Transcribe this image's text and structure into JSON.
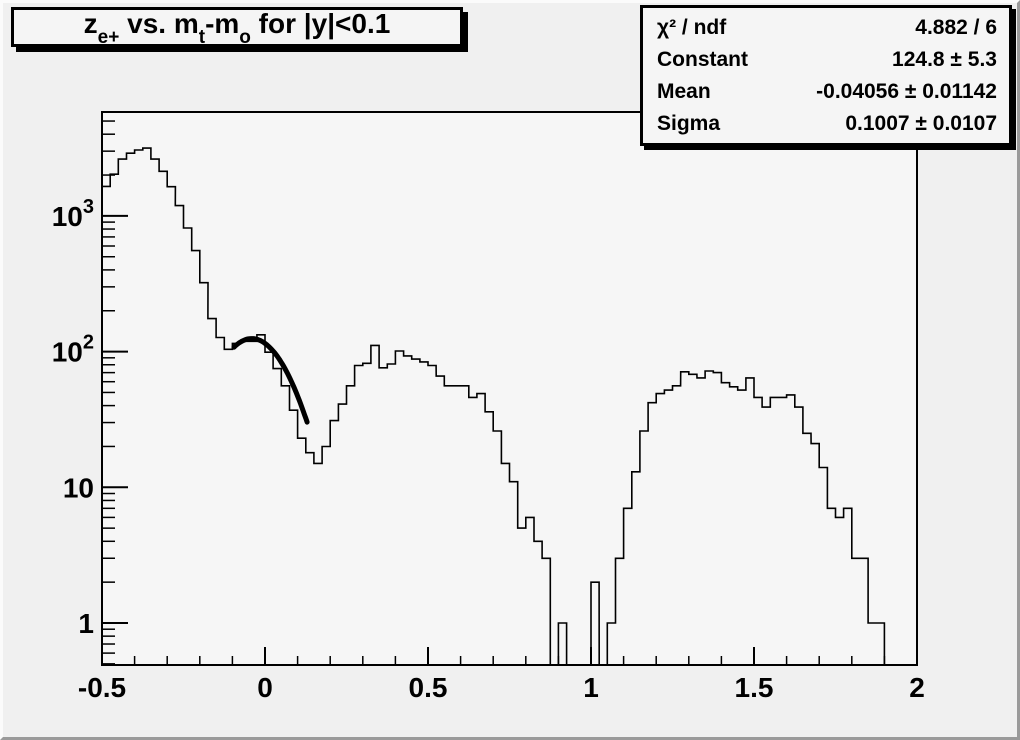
{
  "canvas": {
    "bg_color": "#f0f0f0",
    "frame_bg_color": "#f6f6f6",
    "line_color": "#000000",
    "bevel_light": "#fbfbfb",
    "bevel_dark": "#9a9a9a"
  },
  "title": {
    "text": "z_e+ vs. m_t-m_o for |y|<0.1",
    "segments": [
      {
        "t": "z"
      },
      {
        "t": "e+",
        "sub": true
      },
      {
        "t": " vs. m"
      },
      {
        "t": "t",
        "sub": true
      },
      {
        "t": "-m"
      },
      {
        "t": "o",
        "sub": true
      },
      {
        "t": " for |y|<0.1"
      }
    ]
  },
  "stats_box": {
    "rows": [
      {
        "label": "χ² / ndf",
        "value": "4.882 / 6"
      },
      {
        "label": "Constant",
        "value": "124.8 ± 5.3"
      },
      {
        "label": "Mean",
        "value": "-0.04056 ± 0.01142"
      },
      {
        "label": "Sigma",
        "value": "0.1007 ± 0.0107"
      }
    ]
  },
  "chart_data": {
    "type": "bar",
    "render_style": "step-histogram-outline",
    "title": "z_e+ vs. m_t-m_o for |y|<0.1",
    "xlabel": "",
    "ylabel": "",
    "grid": false,
    "legend": null,
    "y_scale": "log",
    "xlim": [
      -0.5,
      2.0
    ],
    "ylim": [
      0.49,
      5700
    ],
    "x_start": -0.5,
    "bin_width": 0.025,
    "n_bins": 100,
    "values": [
      1650,
      2030,
      2620,
      2900,
      3060,
      3160,
      2620,
      2130,
      1640,
      1190,
      815,
      555,
      322,
      175,
      127,
      104,
      115,
      119,
      119,
      133,
      99,
      75,
      56,
      37,
      23,
      18,
      15,
      20,
      31,
      41,
      56,
      79,
      82,
      111,
      76,
      81,
      101,
      93,
      88,
      84,
      79,
      66,
      56,
      56,
      56,
      46,
      49,
      36,
      26,
      15,
      11,
      5,
      6,
      4,
      3,
      0,
      1,
      0,
      0,
      0,
      2,
      0,
      1,
      3,
      7,
      13,
      26,
      42,
      49,
      52,
      56,
      71,
      68,
      64,
      72,
      70,
      59,
      55,
      52,
      64,
      46,
      39,
      46,
      46,
      48,
      39,
      25,
      21,
      14,
      7,
      6,
      7,
      3,
      3,
      1,
      1,
      0,
      0,
      0,
      0
    ],
    "x_ticks_major": {
      "values": [
        -0.5,
        0,
        0.5,
        1,
        1.5,
        2
      ],
      "labels": [
        "-0.5",
        "0",
        "0.5",
        "1",
        "1.5",
        "2"
      ]
    },
    "x_minor_step": 0.1,
    "y_ticks": [
      {
        "value": 1,
        "base": "1",
        "exp": ""
      },
      {
        "value": 10,
        "base": "10",
        "exp": ""
      },
      {
        "value": 100,
        "base": "10",
        "exp": "2"
      },
      {
        "value": 1000,
        "base": "10",
        "exp": "3"
      }
    ],
    "fit": {
      "function": "gaussian",
      "constant": 124.8,
      "mean": -0.04056,
      "sigma": 0.1007,
      "range": [
        -0.095,
        0.13
      ],
      "line_width": 5,
      "color": "#000000"
    }
  }
}
